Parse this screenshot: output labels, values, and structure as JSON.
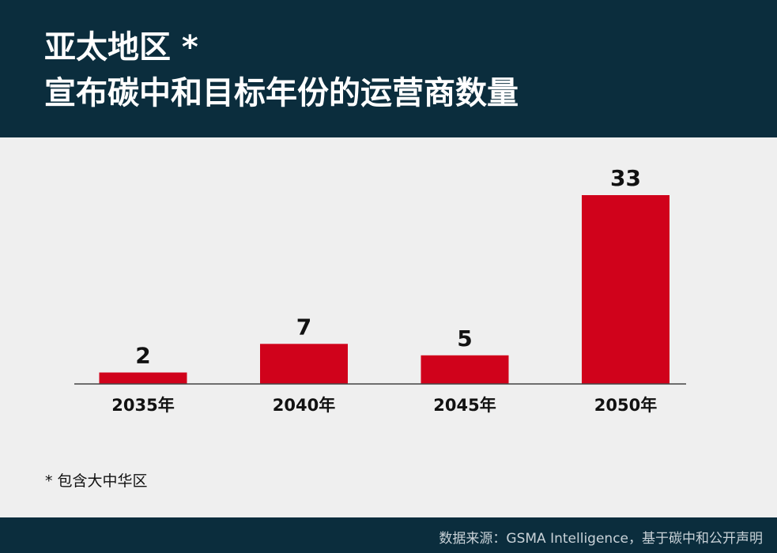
{
  "header": {
    "title_line1": "亚太地区 *",
    "title_line2": "宣布碳中和目标年份的运营商数量",
    "background": "#0b2d3d"
  },
  "chart_data": {
    "type": "bar",
    "categories": [
      "2035年",
      "2040年",
      "2045年",
      "2050年"
    ],
    "values": [
      2,
      7,
      5,
      33
    ],
    "data_labels": [
      "2",
      "7",
      "5",
      "33"
    ],
    "bar_color": "#d0021b",
    "ylim": [
      0,
      33
    ],
    "grid": false,
    "legend": "none"
  },
  "footnote": "* 包含大中华区",
  "footer": {
    "source": "数据来源：GSMA Intelligence，基于碳中和公开声明"
  }
}
